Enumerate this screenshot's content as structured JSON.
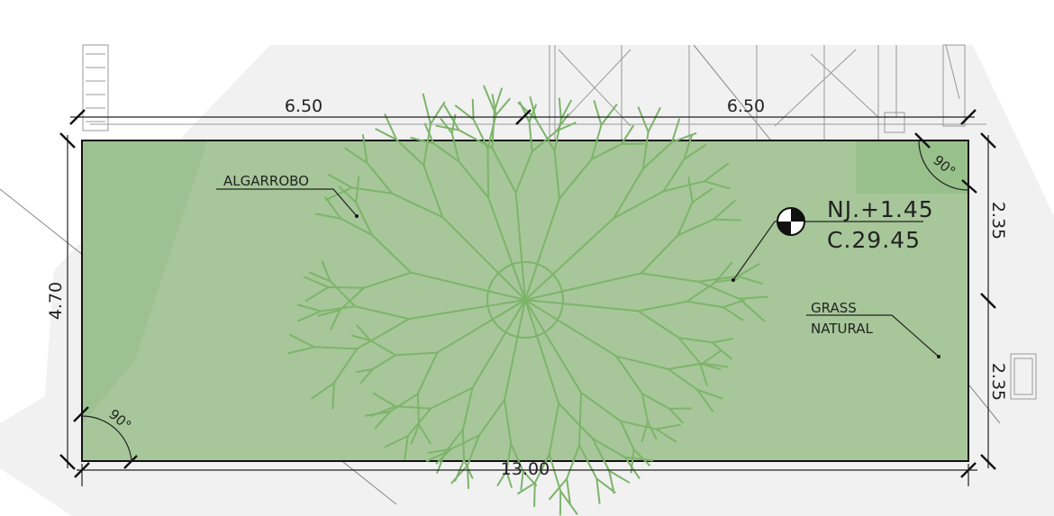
{
  "dimensions": {
    "top_left": "6.50",
    "top_right": "6.50",
    "bottom": "13.00",
    "left": "4.70",
    "right_top": "2.35",
    "right_bottom": "2.35"
  },
  "angles": [
    "90°",
    "90°"
  ],
  "labels": {
    "tree": "ALGARROBO",
    "level": "NJ.+1.45",
    "elevation": "C.29.45",
    "grass_line1": "GRASS",
    "grass_line2": "NATURAL"
  }
}
